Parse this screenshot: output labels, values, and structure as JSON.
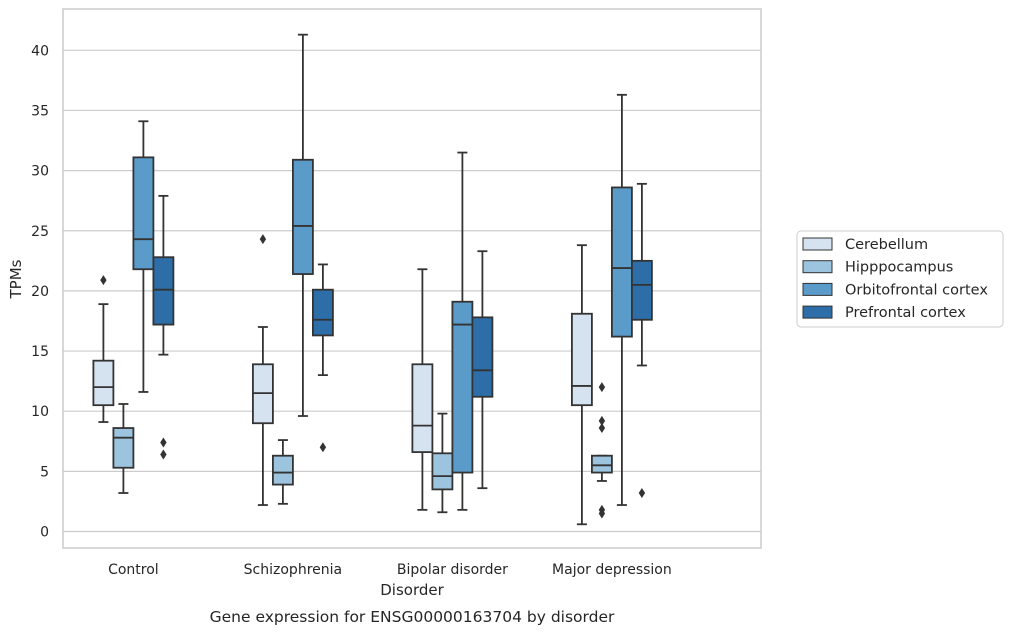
{
  "chart_data": {
    "type": "box",
    "xlabel": "Disorder",
    "ylabel": "TPMs",
    "caption": "Gene expression for ENSG00000163704 by disorder",
    "ylim": [
      -1.3,
      43.5
    ],
    "yticks": [
      0,
      5,
      10,
      15,
      20,
      25,
      30,
      35,
      40
    ],
    "grid": "horizontal",
    "legend_position": "right",
    "categories": [
      "Control",
      "Schizophrenia",
      "Bipolar disorder",
      "Major depression"
    ],
    "series": [
      {
        "name": "Cerebellum",
        "color": "#d5e3f1",
        "boxes": [
          {
            "category": "Control",
            "whisker_low": 9.1,
            "q1": 10.5,
            "median": 12.0,
            "q3": 14.2,
            "whisker_high": 18.9,
            "outliers": [
              20.9
            ]
          },
          {
            "category": "Schizophrenia",
            "whisker_low": 2.2,
            "q1": 9.0,
            "median": 11.5,
            "q3": 13.9,
            "whisker_high": 17.0,
            "outliers": [
              24.3
            ]
          },
          {
            "category": "Bipolar disorder",
            "whisker_low": 1.8,
            "q1": 6.6,
            "median": 8.8,
            "q3": 13.9,
            "whisker_high": 21.8,
            "outliers": []
          },
          {
            "category": "Major depression",
            "whisker_low": 0.6,
            "q1": 10.5,
            "median": 12.1,
            "q3": 18.1,
            "whisker_high": 23.8,
            "outliers": []
          }
        ]
      },
      {
        "name": "Hipppocampus",
        "color": "#9dc4de",
        "boxes": [
          {
            "category": "Control",
            "whisker_low": 3.2,
            "q1": 5.3,
            "median": 7.8,
            "q3": 8.6,
            "whisker_high": 10.6,
            "outliers": []
          },
          {
            "category": "Schizophrenia",
            "whisker_low": 2.3,
            "q1": 3.9,
            "median": 4.9,
            "q3": 6.3,
            "whisker_high": 7.6,
            "outliers": []
          },
          {
            "category": "Bipolar disorder",
            "whisker_low": 1.6,
            "q1": 3.5,
            "median": 4.6,
            "q3": 6.5,
            "whisker_high": 9.8,
            "outliers": []
          },
          {
            "category": "Major depression",
            "whisker_low": 4.2,
            "q1": 4.9,
            "median": 5.5,
            "q3": 6.3,
            "whisker_high": 6.3,
            "outliers": [
              12.0,
              9.2,
              8.6,
              1.8,
              1.5
            ]
          }
        ]
      },
      {
        "name": "Orbitofrontal cortex",
        "color": "#5a9bc9",
        "boxes": [
          {
            "category": "Control",
            "whisker_low": 11.6,
            "q1": 21.8,
            "median": 24.3,
            "q3": 31.1,
            "whisker_high": 34.1,
            "outliers": []
          },
          {
            "category": "Schizophrenia",
            "whisker_low": 9.6,
            "q1": 21.4,
            "median": 25.4,
            "q3": 30.9,
            "whisker_high": 41.3,
            "outliers": []
          },
          {
            "category": "Bipolar disorder",
            "whisker_low": 1.8,
            "q1": 4.9,
            "median": 17.2,
            "q3": 19.1,
            "whisker_high": 31.5,
            "outliers": []
          },
          {
            "category": "Major depression",
            "whisker_low": 2.2,
            "q1": 16.2,
            "median": 21.9,
            "q3": 28.6,
            "whisker_high": 36.3,
            "outliers": []
          }
        ]
      },
      {
        "name": "Prefrontal cortex",
        "color": "#2d6ea9",
        "boxes": [
          {
            "category": "Control",
            "whisker_low": 14.7,
            "q1": 17.2,
            "median": 20.1,
            "q3": 22.8,
            "whisker_high": 27.9,
            "outliers": [
              7.4,
              6.4
            ]
          },
          {
            "category": "Schizophrenia",
            "whisker_low": 13.0,
            "q1": 16.3,
            "median": 17.6,
            "q3": 20.1,
            "whisker_high": 22.2,
            "outliers": [
              7.0
            ]
          },
          {
            "category": "Bipolar disorder",
            "whisker_low": 3.6,
            "q1": 11.2,
            "median": 13.4,
            "q3": 17.8,
            "whisker_high": 23.3,
            "outliers": []
          },
          {
            "category": "Major depression",
            "whisker_low": 13.8,
            "q1": 17.6,
            "median": 20.5,
            "q3": 22.5,
            "whisker_high": 28.9,
            "outliers": [
              3.2
            ]
          }
        ]
      }
    ]
  }
}
